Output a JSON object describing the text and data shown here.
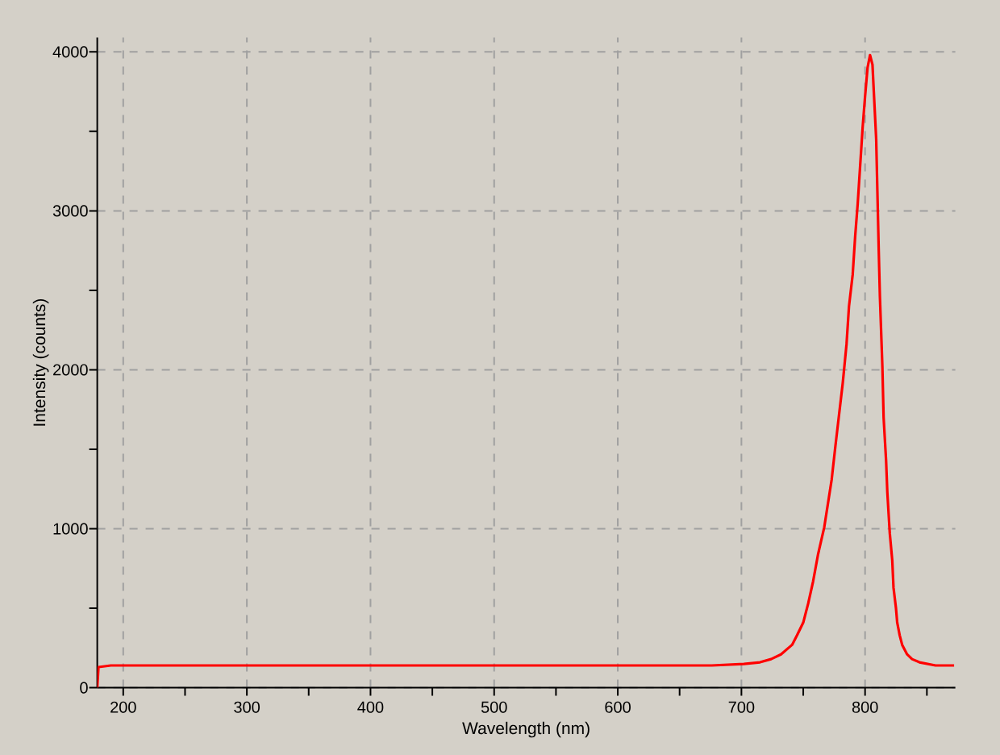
{
  "chart_data": {
    "type": "line",
    "xlabel": "Wavelength (nm)",
    "ylabel": "Intensity (counts)",
    "x": [
      179,
      180,
      190,
      250,
      300,
      350,
      400,
      450,
      500,
      550,
      600,
      650,
      676,
      702,
      715,
      724,
      732,
      741,
      745,
      750,
      754,
      758,
      762,
      767,
      770,
      773,
      776,
      779,
      782,
      785,
      787,
      790,
      792,
      794,
      796,
      798,
      800,
      802,
      804,
      806,
      807,
      809,
      810,
      811,
      812,
      814,
      815,
      817,
      818,
      820,
      822,
      823,
      825,
      826,
      828,
      830,
      834,
      838,
      844,
      857,
      872
    ],
    "values": [
      0,
      130,
      140,
      140,
      140,
      140,
      140,
      140,
      140,
      140,
      140,
      140,
      140,
      150,
      160,
      180,
      210,
      270,
      330,
      410,
      530,
      670,
      840,
      1010,
      1160,
      1310,
      1520,
      1720,
      1920,
      2160,
      2400,
      2600,
      2840,
      3040,
      3280,
      3520,
      3720,
      3900,
      3980,
      3920,
      3760,
      3450,
      3110,
      2770,
      2460,
      2020,
      1700,
      1430,
      1230,
      970,
      800,
      630,
      500,
      410,
      330,
      270,
      210,
      180,
      160,
      140,
      140
    ],
    "color": "#ff0000",
    "xlim": [
      179,
      873
    ],
    "ylim": [
      0,
      4090
    ],
    "xticks": [
      200,
      {
        "value": 250,
        "label": null
      },
      300,
      {
        "value": 350,
        "label": null
      },
      400,
      {
        "value": 450,
        "label": null
      },
      500,
      {
        "value": 550,
        "label": null
      },
      600,
      {
        "value": 650,
        "label": null
      },
      700,
      {
        "value": 750,
        "label": null
      },
      800,
      {
        "value": 850,
        "label": null
      }
    ],
    "yticks": [
      0,
      {
        "value": 500,
        "label": null
      },
      1000,
      {
        "value": 1500,
        "label": null
      },
      2000,
      {
        "value": 2500,
        "label": null
      },
      3000,
      {
        "value": 3500,
        "label": null
      },
      4000
    ],
    "grid": true
  }
}
